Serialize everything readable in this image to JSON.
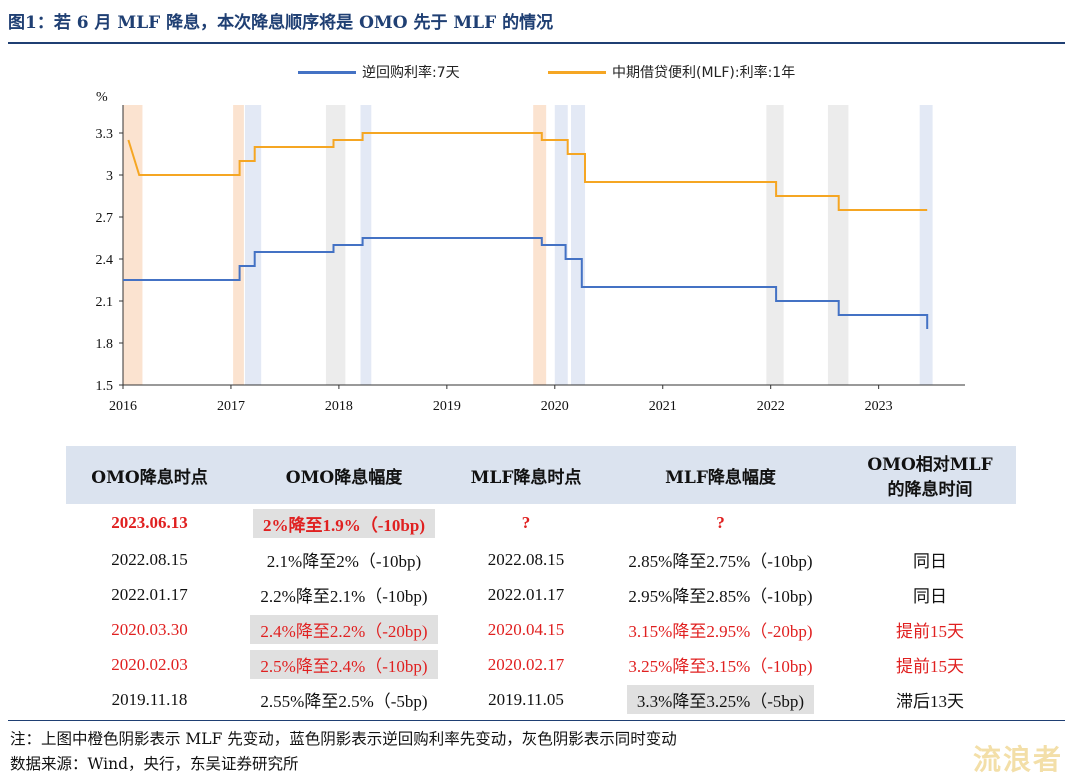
{
  "figure_title": "图1：若 6 月 MLF 降息，本次降息顺序将是 OMO 先于 MLF 的情况",
  "chart_data": {
    "type": "line",
    "ylabel": "%",
    "ylim": [
      1.5,
      3.5
    ],
    "yticks": [
      "1.5",
      "1.8",
      "2.1",
      "2.4",
      "2.7",
      "3",
      "3.3"
    ],
    "xlim": [
      2016.0,
      2023.8
    ],
    "xticks": [
      "2016",
      "2017",
      "2018",
      "2019",
      "2020",
      "2021",
      "2022",
      "2023"
    ],
    "legend_position": "top",
    "colors": {
      "omo": "#4472c4",
      "mlf": "#f5a623",
      "orange_shade": "#fbe3d0",
      "blue_shade": "#e3e9f5",
      "gray_shade": "#ececec"
    },
    "series": [
      {
        "name": "逆回购利率:7天",
        "points": [
          [
            2016.0,
            2.25
          ],
          [
            2017.08,
            2.25
          ],
          [
            2017.08,
            2.35
          ],
          [
            2017.22,
            2.35
          ],
          [
            2017.22,
            2.45
          ],
          [
            2017.95,
            2.45
          ],
          [
            2017.95,
            2.5
          ],
          [
            2018.22,
            2.5
          ],
          [
            2018.22,
            2.55
          ],
          [
            2019.88,
            2.55
          ],
          [
            2019.88,
            2.5
          ],
          [
            2020.1,
            2.5
          ],
          [
            2020.1,
            2.4
          ],
          [
            2020.25,
            2.4
          ],
          [
            2020.25,
            2.2
          ],
          [
            2022.05,
            2.2
          ],
          [
            2022.05,
            2.1
          ],
          [
            2022.63,
            2.1
          ],
          [
            2022.63,
            2.0
          ],
          [
            2023.45,
            2.0
          ],
          [
            2023.45,
            1.9
          ]
        ]
      },
      {
        "name": "中期借贷便利(MLF):利率:1年",
        "points": [
          [
            2016.05,
            3.25
          ],
          [
            2016.15,
            3.0
          ],
          [
            2017.08,
            3.0
          ],
          [
            2017.08,
            3.1
          ],
          [
            2017.22,
            3.1
          ],
          [
            2017.22,
            3.2
          ],
          [
            2017.95,
            3.2
          ],
          [
            2017.95,
            3.25
          ],
          [
            2018.22,
            3.25
          ],
          [
            2018.22,
            3.3
          ],
          [
            2019.88,
            3.3
          ],
          [
            2019.88,
            3.25
          ],
          [
            2020.12,
            3.25
          ],
          [
            2020.12,
            3.15
          ],
          [
            2020.28,
            3.15
          ],
          [
            2020.28,
            2.95
          ],
          [
            2022.05,
            2.95
          ],
          [
            2022.05,
            2.85
          ],
          [
            2022.63,
            2.85
          ],
          [
            2022.63,
            2.75
          ],
          [
            2023.45,
            2.75
          ]
        ]
      }
    ],
    "shaded_periods": [
      {
        "from": 2016.0,
        "to": 2016.18,
        "kind": "orange"
      },
      {
        "from": 2017.02,
        "to": 2017.12,
        "kind": "orange"
      },
      {
        "from": 2017.13,
        "to": 2017.28,
        "kind": "blue"
      },
      {
        "from": 2017.88,
        "to": 2018.06,
        "kind": "gray"
      },
      {
        "from": 2018.2,
        "to": 2018.3,
        "kind": "blue"
      },
      {
        "from": 2019.8,
        "to": 2019.92,
        "kind": "orange"
      },
      {
        "from": 2020.0,
        "to": 2020.12,
        "kind": "blue"
      },
      {
        "from": 2020.15,
        "to": 2020.28,
        "kind": "blue"
      },
      {
        "from": 2021.96,
        "to": 2022.12,
        "kind": "gray"
      },
      {
        "from": 2022.53,
        "to": 2022.72,
        "kind": "gray"
      },
      {
        "from": 2023.38,
        "to": 2023.5,
        "kind": "blue"
      }
    ]
  },
  "table": {
    "headers": [
      "OMO降息时点",
      "OMO降息幅度",
      "MLF降息时点",
      "MLF降息幅度",
      "OMO相对MLF的降息时间"
    ],
    "header_last_lines": [
      "OMO相对MLF",
      "的降息时间"
    ],
    "rows": [
      {
        "omo_date": "2023.06.13",
        "omo_cut": "2%降至1.9%（-10bp)",
        "mlf_date": "?",
        "mlf_cut": "?",
        "relative": "",
        "style": "highlight",
        "gray": "omo"
      },
      {
        "omo_date": "2022.08.15",
        "omo_cut": "2.1%降至2%（-10bp)",
        "mlf_date": "2022.08.15",
        "mlf_cut": "2.85%降至2.75%（-10bp)",
        "relative": "同日",
        "style": "normal",
        "gray": ""
      },
      {
        "omo_date": "2022.01.17",
        "omo_cut": "2.2%降至2.1%（-10bp)",
        "mlf_date": "2022.01.17",
        "mlf_cut": "2.95%降至2.85%（-10bp)",
        "relative": "同日",
        "style": "normal",
        "gray": ""
      },
      {
        "omo_date": "2020.03.30",
        "omo_cut": "2.4%降至2.2%（-20bp)",
        "mlf_date": "2020.04.15",
        "mlf_cut": "3.15%降至2.95%（-20bp)",
        "relative": "提前15天",
        "style": "red",
        "gray": "omo"
      },
      {
        "omo_date": "2020.02.03",
        "omo_cut": "2.5%降至2.4%（-10bp)",
        "mlf_date": "2020.02.17",
        "mlf_cut": "3.25%降至3.15%（-10bp)",
        "relative": "提前15天",
        "style": "red",
        "gray": "omo"
      },
      {
        "omo_date": "2019.11.18",
        "omo_cut": "2.55%降至2.5%（-5bp)",
        "mlf_date": "2019.11.05",
        "mlf_cut": "3.3%降至3.25%（-5bp)",
        "relative": "滞后13天",
        "style": "normal",
        "gray": "mlf"
      }
    ]
  },
  "note": "注：上图中橙色阴影表示 MLF 先变动，蓝色阴影表示逆回购利率先变动，灰色阴影表示同时变动",
  "source": "数据来源：Wind，央行，东吴证券研究所",
  "watermark": "流浪者"
}
